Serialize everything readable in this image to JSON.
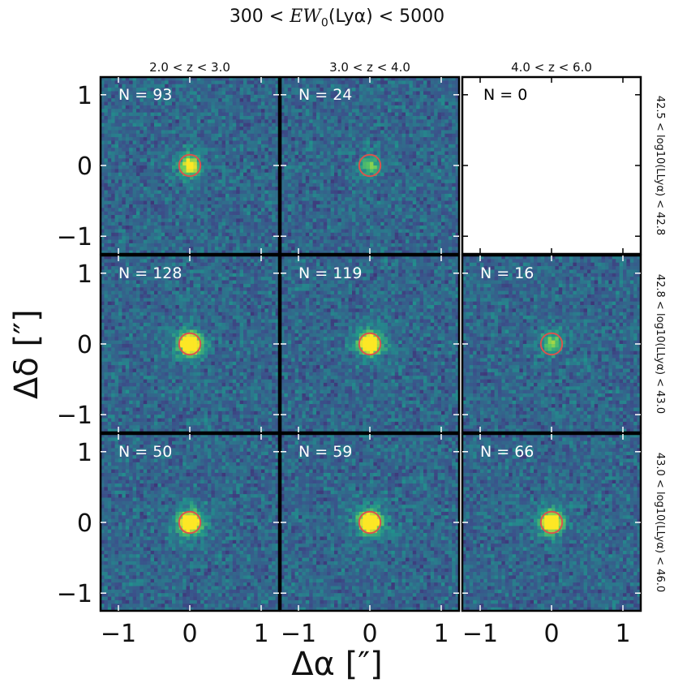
{
  "chart_data": {
    "type": "heatmap",
    "title": "300 < EW0(Lyα) < 5000",
    "title_parts": {
      "pre": "300 < ",
      "var": "EW",
      "sub": "0",
      "post": "(Lyα) < 5000"
    },
    "xlabel": "Δα [″]",
    "ylabel": "Δδ [″]",
    "xlim": [
      -1.25,
      1.25
    ],
    "ylim": [
      -1.25,
      1.25
    ],
    "xticks": [
      -1,
      0,
      1
    ],
    "yticks": [
      -1,
      0,
      1
    ],
    "xtick_labels": [
      "−1",
      "0",
      "1"
    ],
    "ytick_labels": [
      "−1",
      "0",
      "1"
    ],
    "columns": [
      "2.0 < z < 3.0",
      "3.0 < z < 4.0",
      "4.0 < z < 6.0"
    ],
    "rows": [
      "42.5 < log10(LLyα) < 42.8",
      "42.8 < log10(LLyα) < 43.0",
      "43.0 < log10(LLyα) < 46.0"
    ],
    "n_labels": [
      [
        "N = 93",
        "N = 24",
        "N = 0"
      ],
      [
        "N = 128",
        "N = 119",
        "N = 16"
      ],
      [
        "N = 50",
        "N = 59",
        "N = 66"
      ]
    ],
    "counts": [
      [
        93,
        24,
        0
      ],
      [
        128,
        119,
        16
      ],
      [
        50,
        59,
        66
      ]
    ],
    "central_intensity": [
      [
        0.55,
        0.3,
        0
      ],
      [
        1.0,
        0.95,
        0.35
      ],
      [
        1.0,
        1.0,
        0.85
      ]
    ],
    "aperture_radius": 0.15,
    "colormap": "viridis",
    "aperture_color": "#d9534f"
  }
}
